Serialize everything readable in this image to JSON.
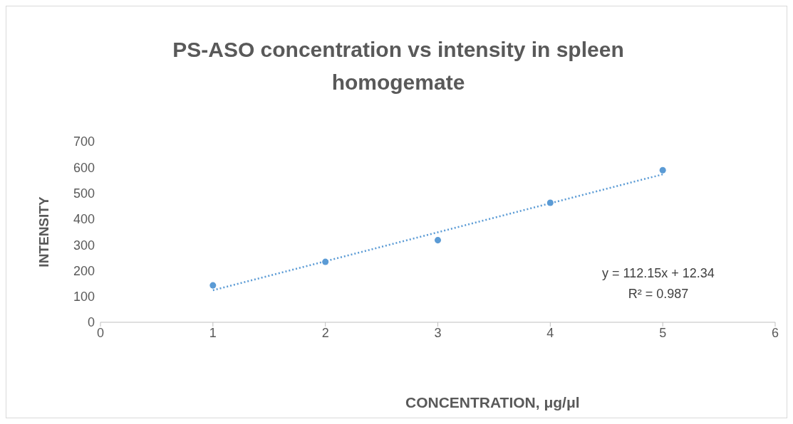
{
  "chart_data": {
    "type": "scatter",
    "title": "PS-ASO concentration vs intensity in spleen homogemate",
    "xlabel": "CONCENTRATION,  μg/μl",
    "ylabel": "INTENSITY",
    "xlim": [
      0,
      6
    ],
    "xticks": [
      0,
      1,
      2,
      3,
      4,
      5,
      6
    ],
    "ylim": [
      0,
      700
    ],
    "yticks": [
      0,
      100,
      200,
      300,
      400,
      500,
      600,
      700
    ],
    "grid": false,
    "series": [
      {
        "color": "#5b9bd5",
        "marker": "circle",
        "x": [
          1,
          2,
          3,
          4,
          5
        ],
        "values": [
          143,
          234,
          318,
          463,
          589
        ]
      },
      {
        "type": "line",
        "color": "#5b9bd5",
        "marker": "none",
        "line_style": "dotted",
        "x": [
          1,
          5
        ],
        "values": [
          124,
          573
        ]
      }
    ],
    "annotations": [
      "y = 112.15x + 12.34",
      "R² = 0.987"
    ]
  }
}
